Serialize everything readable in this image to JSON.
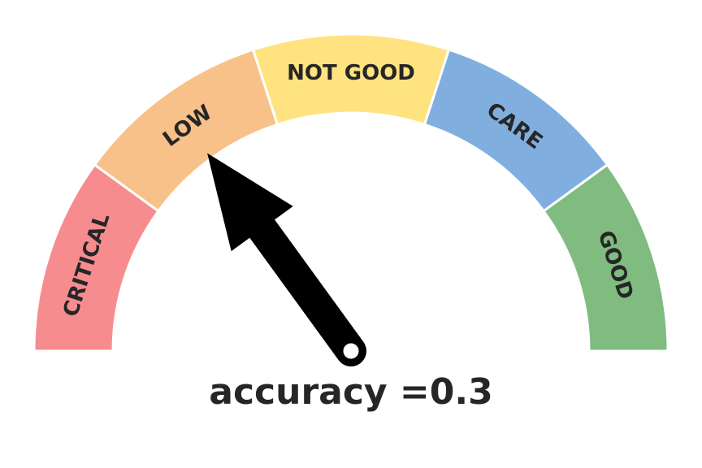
{
  "chart_data": {
    "type": "gauge",
    "segments": [
      {
        "label": "CRITICAL",
        "color": "#f78c8f"
      },
      {
        "label": "LOW",
        "color": "#f7c189"
      },
      {
        "label": "NOT GOOD",
        "color": "#ffe380"
      },
      {
        "label": "CARE",
        "color": "#80afdf"
      },
      {
        "label": "GOOD",
        "color": "#80bb80"
      }
    ],
    "value": 0.3,
    "range": [
      0,
      1
    ],
    "readout": "accuracy =0.3"
  }
}
